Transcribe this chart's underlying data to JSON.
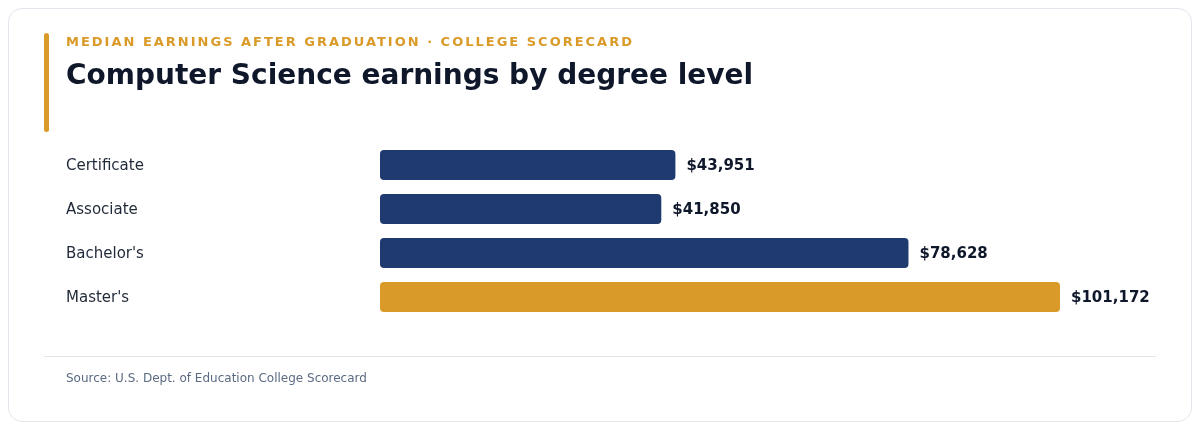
{
  "chart_data": {
    "type": "bar",
    "orientation": "horizontal",
    "subtitle": "MEDIAN EARNINGS AFTER GRADUATION · COLLEGE SCORECARD",
    "title": "Computer Science earnings by degree level",
    "categories": [
      "Certificate",
      "Associate",
      "Bachelor's",
      "Master's"
    ],
    "values": [
      43951,
      41850,
      78628,
      101172
    ],
    "colors": [
      "#1e3a6e",
      "#1e3a6e",
      "#1e3a6e",
      "#da9a28"
    ],
    "value_labels": [
      "$43,951",
      "$41,850",
      "$78,628",
      "$101,172"
    ],
    "annotations": [
      "Source: U.S. Dept. of Education College Scorecard"
    ]
  }
}
